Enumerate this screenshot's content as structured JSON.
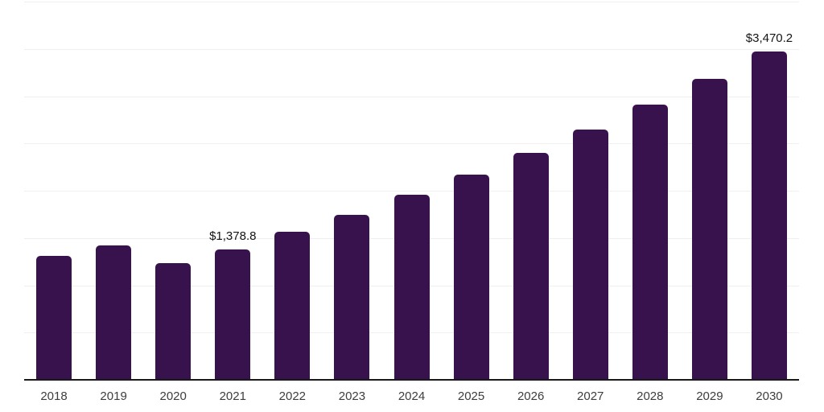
{
  "chart_data": {
    "type": "bar",
    "title": "",
    "xlabel": "",
    "ylabel": "",
    "categories": [
      "2018",
      "2019",
      "2020",
      "2021",
      "2022",
      "2023",
      "2024",
      "2025",
      "2026",
      "2027",
      "2028",
      "2029",
      "2030"
    ],
    "values": [
      1308,
      1424,
      1237,
      1378.8,
      1566,
      1747,
      1957,
      2173,
      2400,
      2647,
      2911,
      3185,
      3470.2
    ],
    "data_labels": [
      {
        "index": 3,
        "text": "$1,378.8"
      },
      {
        "index": 12,
        "text": "$3,470.2"
      }
    ],
    "ylim": [
      0,
      4000
    ],
    "gridline_interval": 500,
    "grid": true,
    "y_tick_labels_shown": false,
    "legend_position": "none",
    "colors": {
      "bar": "#38124D",
      "gridline": "#efefef",
      "axis_line": "#1a1a1a",
      "data_label_text": "#141414",
      "tick_label_text": "#3d3d3d",
      "background": "#ffffff"
    }
  }
}
